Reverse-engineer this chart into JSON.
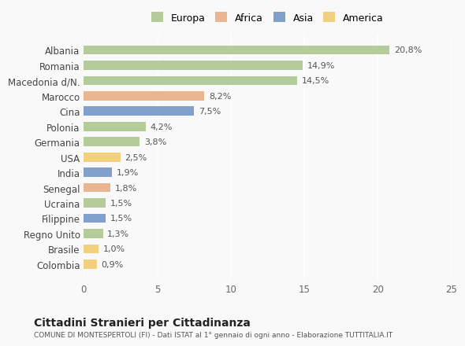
{
  "categories": [
    "Albania",
    "Romania",
    "Macedonia d/N.",
    "Marocco",
    "Cina",
    "Polonia",
    "Germania",
    "USA",
    "India",
    "Senegal",
    "Ucraina",
    "Filippine",
    "Regno Unito",
    "Brasile",
    "Colombia"
  ],
  "values": [
    20.8,
    14.9,
    14.5,
    8.2,
    7.5,
    4.2,
    3.8,
    2.5,
    1.9,
    1.8,
    1.5,
    1.5,
    1.3,
    1.0,
    0.9
  ],
  "labels": [
    "20,8%",
    "14,9%",
    "14,5%",
    "8,2%",
    "7,5%",
    "4,2%",
    "3,8%",
    "2,5%",
    "1,9%",
    "1,8%",
    "1,5%",
    "1,5%",
    "1,3%",
    "1,0%",
    "0,9%"
  ],
  "colors": [
    "#a8c48a",
    "#a8c48a",
    "#a8c48a",
    "#e8a97e",
    "#6b8fc2",
    "#a8c48a",
    "#a8c48a",
    "#f0c96b",
    "#6b8fc2",
    "#e8a97e",
    "#a8c48a",
    "#6b8fc2",
    "#a8c48a",
    "#f0c96b",
    "#f0c96b"
  ],
  "continent_colors": {
    "Europa": "#a8c48a",
    "Africa": "#e8a97e",
    "Asia": "#6b8fc2",
    "America": "#f0c96b"
  },
  "legend_labels": [
    "Europa",
    "Africa",
    "Asia",
    "America"
  ],
  "title": "Cittadini Stranieri per Cittadinanza",
  "subtitle": "COMUNE DI MONTESPERTOLI (FI) - Dati ISTAT al 1° gennaio di ogni anno - Elaborazione TUTTITALIA.IT",
  "xlim": [
    0,
    25
  ],
  "xticks": [
    0,
    5,
    10,
    15,
    20,
    25
  ],
  "background_color": "#f9f9f9",
  "bar_alpha": 0.85
}
